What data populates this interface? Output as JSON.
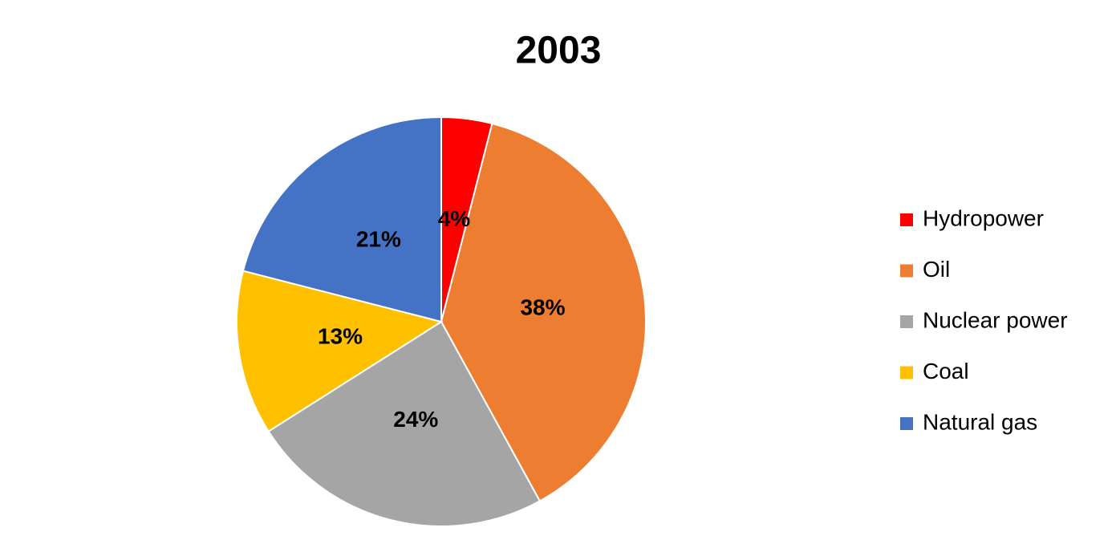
{
  "chart_data": {
    "type": "pie",
    "title": "2003",
    "categories": [
      "Hydropower",
      "Oil",
      "Nuclear power",
      "Coal",
      "Natural gas"
    ],
    "values": [
      4,
      38,
      24,
      13,
      21
    ],
    "value_labels": [
      "4%",
      "38%",
      "24%",
      "13%",
      "21%"
    ],
    "colors": [
      "#ff0000",
      "#ed7d31",
      "#a5a5a5",
      "#ffc000",
      "#4472c4"
    ],
    "legend": "right"
  }
}
